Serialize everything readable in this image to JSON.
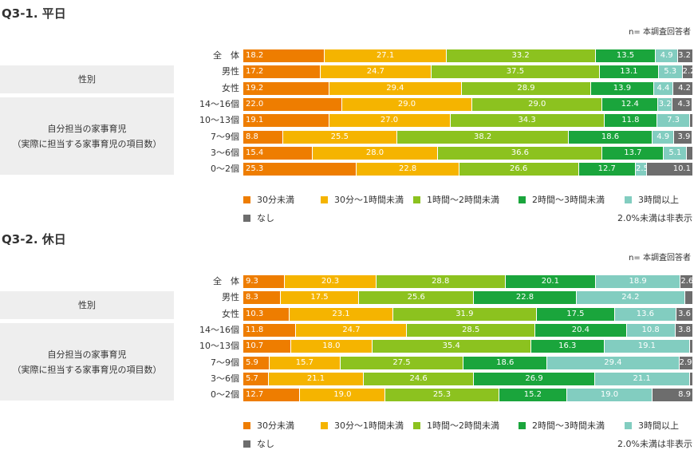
{
  "colors": [
    "#ee7d00",
    "#f5b400",
    "#8cc21f",
    "#1aa53c",
    "#82cdc0",
    "#6d6d6d"
  ],
  "chart_data": [
    {
      "type": "bar",
      "orientation": "horizontal",
      "stacked": true,
      "title": "Q3-1. 平日",
      "note": "n= 本調査回答者",
      "groups": [
        {
          "label": "性別"
        },
        {
          "label": "自分担当の家事育児",
          "sublabel": "（実際に担当する家事育児の項目数）"
        }
      ],
      "categories": [
        "全　体",
        "男性",
        "女性",
        "14〜16個",
        "10〜13個",
        "7〜9個",
        "3〜6個",
        "0〜2個"
      ],
      "series": [
        {
          "name": "30分未満",
          "values": [
            18.2,
            17.2,
            19.2,
            22.0,
            19.1,
            8.8,
            15.4,
            25.3
          ]
        },
        {
          "name": "30分〜1時間未満",
          "values": [
            27.1,
            24.7,
            29.4,
            29.0,
            27.0,
            25.5,
            28.0,
            22.8
          ]
        },
        {
          "name": "1時間〜2時間未満",
          "values": [
            33.2,
            37.5,
            28.9,
            29.0,
            34.3,
            38.2,
            36.6,
            26.6
          ]
        },
        {
          "name": "2時間〜3時間未満",
          "values": [
            13.5,
            13.1,
            13.9,
            12.4,
            11.8,
            18.6,
            13.7,
            12.7
          ]
        },
        {
          "name": "3時間以上",
          "values": [
            4.9,
            5.3,
            4.4,
            3.2,
            7.3,
            4.9,
            5.1,
            2.5
          ]
        },
        {
          "name": "なし",
          "values": [
            3.2,
            2.2,
            4.2,
            4.3,
            null,
            3.9,
            null,
            10.1
          ]
        }
      ],
      "footnote": "2.0%未満は非表示",
      "xlim": [
        0,
        100
      ]
    },
    {
      "type": "bar",
      "orientation": "horizontal",
      "stacked": true,
      "title": "Q3-2. 休日",
      "note": "n= 本調査回答者",
      "groups": [
        {
          "label": "性別"
        },
        {
          "label": "自分担当の家事育児",
          "sublabel": "（実際に担当する家事育児の項目数）"
        }
      ],
      "categories": [
        "全　体",
        "男性",
        "女性",
        "14〜16個",
        "10〜13個",
        "7〜9個",
        "3〜6個",
        "0〜2個"
      ],
      "series": [
        {
          "name": "30分未満",
          "values": [
            9.3,
            8.3,
            10.3,
            11.8,
            10.7,
            5.9,
            5.7,
            12.7
          ]
        },
        {
          "name": "30分〜1時間未満",
          "values": [
            20.3,
            17.5,
            23.1,
            24.7,
            18.0,
            15.7,
            21.1,
            19.0
          ]
        },
        {
          "name": "1時間〜2時間未満",
          "values": [
            28.8,
            25.6,
            31.9,
            28.5,
            35.4,
            27.5,
            24.6,
            25.3
          ]
        },
        {
          "name": "2時間〜3時間未満",
          "values": [
            20.1,
            22.8,
            17.5,
            20.4,
            16.3,
            18.6,
            26.9,
            15.2
          ]
        },
        {
          "name": "3時間以上",
          "values": [
            18.9,
            24.2,
            13.6,
            10.8,
            19.1,
            29.4,
            21.1,
            19.0
          ]
        },
        {
          "name": "なし",
          "values": [
            2.6,
            null,
            3.6,
            3.8,
            null,
            2.9,
            null,
            8.9
          ]
        }
      ],
      "footnote": "2.0%未満は非表示",
      "xlim": [
        0,
        100
      ]
    }
  ]
}
